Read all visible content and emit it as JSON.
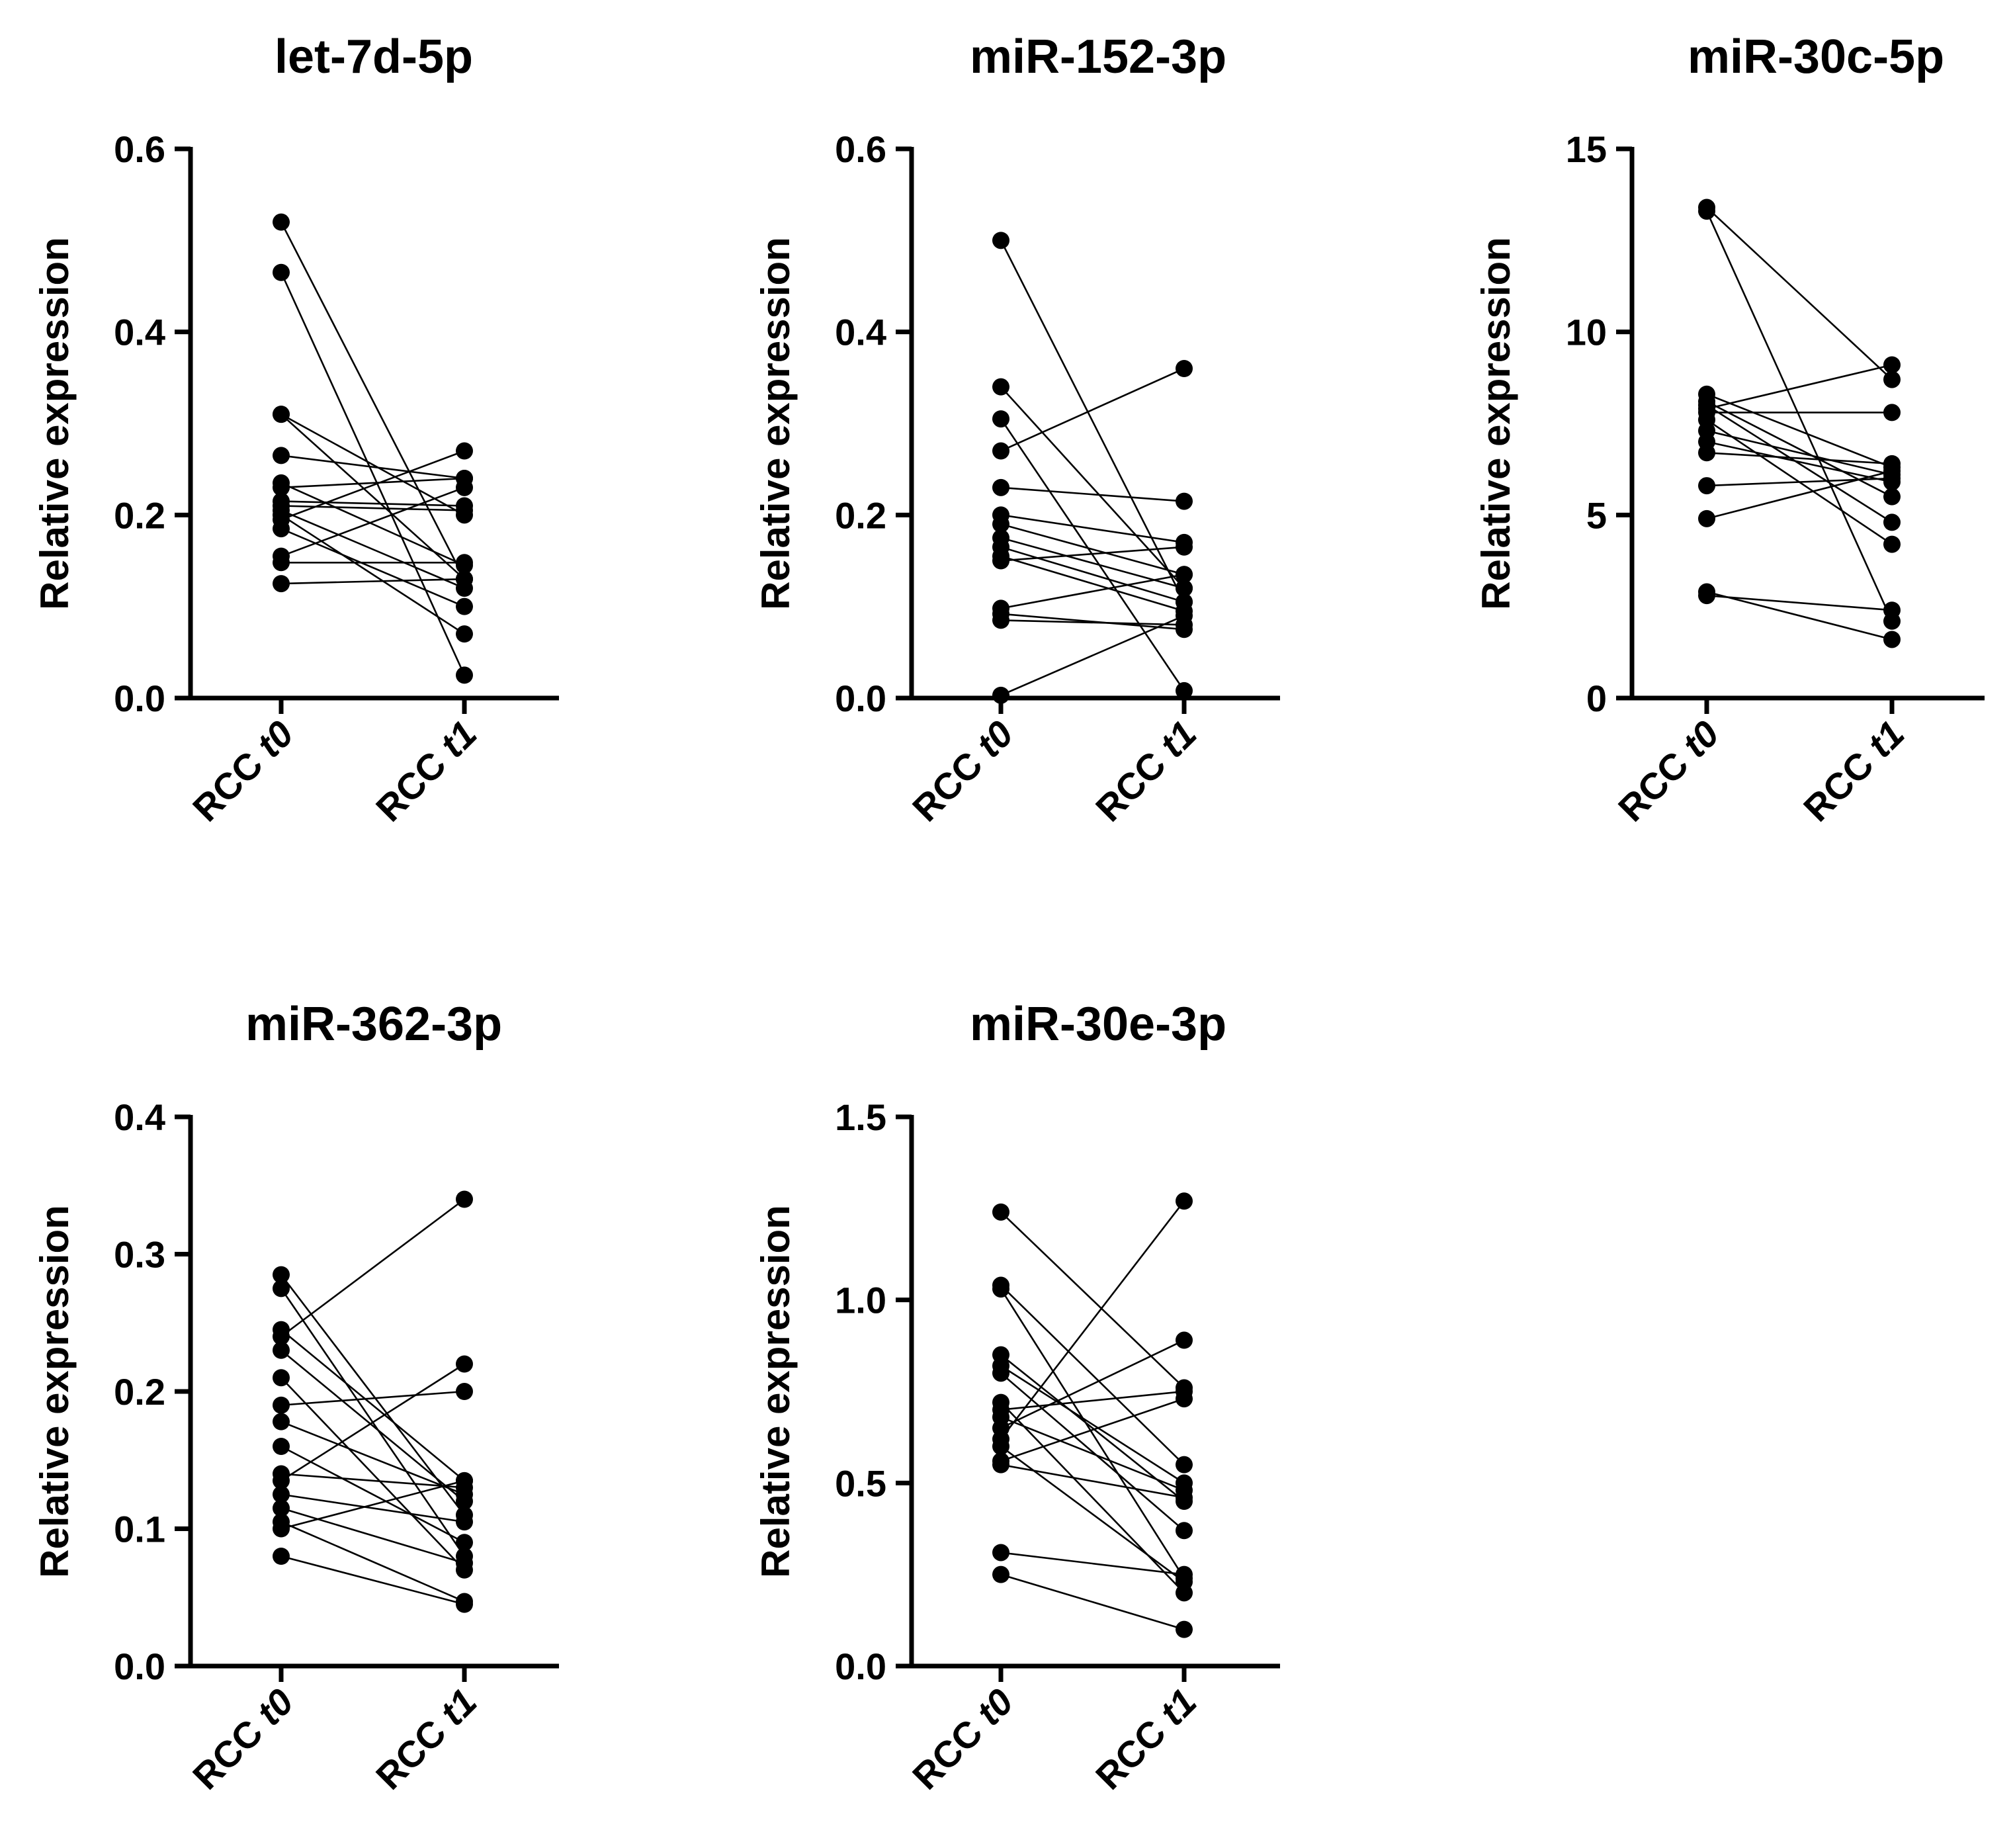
{
  "chart_data": [
    {
      "type": "scatter",
      "title": "let-7d-5p",
      "xlabel": "",
      "ylabel": "Relative expression",
      "categories": [
        "RCC t0",
        "RCC t1"
      ],
      "category_prefix": "RCC ",
      "category_suffixes": [
        "t0",
        "t1"
      ],
      "ylim": [
        0,
        0.6
      ],
      "yticks": [
        0,
        0.2,
        0.4,
        0.6
      ],
      "ytick_labels": [
        "0.0",
        "0.2",
        "0.4",
        "0.6"
      ],
      "pairs": [
        [
          0.52,
          0.13
        ],
        [
          0.465,
          0.025
        ],
        [
          0.31,
          0.13
        ],
        [
          0.31,
          0.2
        ],
        [
          0.265,
          0.24
        ],
        [
          0.235,
          0.145
        ],
        [
          0.23,
          0.24
        ],
        [
          0.215,
          0.21
        ],
        [
          0.21,
          0.205
        ],
        [
          0.205,
          0.12
        ],
        [
          0.2,
          0.07
        ],
        [
          0.195,
          0.27
        ],
        [
          0.185,
          0.1
        ],
        [
          0.155,
          0.23
        ],
        [
          0.148,
          0.148
        ],
        [
          0.125,
          0.13
        ]
      ]
    },
    {
      "type": "scatter",
      "title": "miR-152-3p",
      "xlabel": "",
      "ylabel": "Relative expression",
      "categories": [
        "RCC t0",
        "RCC t1"
      ],
      "category_prefix": "RCC ",
      "category_suffixes": [
        "t0",
        "t1"
      ],
      "ylim": [
        0,
        0.6
      ],
      "yticks": [
        0,
        0.2,
        0.4,
        0.6
      ],
      "ytick_labels": [
        "0.0",
        "0.2",
        "0.4",
        "0.6"
      ],
      "pairs": [
        [
          0.5,
          0.105
        ],
        [
          0.34,
          0.12
        ],
        [
          0.305,
          0.008
        ],
        [
          0.27,
          0.36
        ],
        [
          0.23,
          0.215
        ],
        [
          0.2,
          0.17
        ],
        [
          0.19,
          0.135
        ],
        [
          0.175,
          0.12
        ],
        [
          0.165,
          0.105
        ],
        [
          0.155,
          0.095
        ],
        [
          0.15,
          0.165
        ],
        [
          0.098,
          0.135
        ],
        [
          0.092,
          0.075
        ],
        [
          0.085,
          0.08
        ],
        [
          0.003,
          0.09
        ]
      ]
    },
    {
      "type": "scatter",
      "title": "miR-30c-5p",
      "xlabel": "",
      "ylabel": "Relative expression",
      "categories": [
        "RCC t0",
        "RCC t1"
      ],
      "category_prefix": "RCC ",
      "category_suffixes": [
        "t0",
        "t1"
      ],
      "ylim": [
        0,
        15
      ],
      "yticks": [
        0,
        5,
        10,
        15
      ],
      "ytick_labels": [
        "0",
        "5",
        "10",
        "15"
      ],
      "pairs": [
        [
          13.4,
          8.7
        ],
        [
          13.3,
          2.1
        ],
        [
          8.3,
          6.3
        ],
        [
          8.1,
          5.5
        ],
        [
          8.0,
          4.8
        ],
        [
          7.9,
          9.1
        ],
        [
          7.8,
          7.8
        ],
        [
          7.6,
          4.2
        ],
        [
          7.3,
          6.1
        ],
        [
          7.0,
          5.9
        ],
        [
          6.7,
          6.4
        ],
        [
          5.8,
          6.0
        ],
        [
          4.9,
          6.2
        ],
        [
          2.9,
          1.6
        ],
        [
          2.8,
          2.4
        ]
      ]
    },
    {
      "type": "scatter",
      "title": "miR-362-3p",
      "xlabel": "",
      "ylabel": "Relative expression",
      "categories": [
        "RCC t0",
        "RCC t1"
      ],
      "category_prefix": "RCC ",
      "category_suffixes": [
        "t0",
        "t1"
      ],
      "ylim": [
        0,
        0.4
      ],
      "yticks": [
        0,
        0.1,
        0.2,
        0.3,
        0.4
      ],
      "ytick_labels": [
        "0.0",
        "0.1",
        "0.2",
        "0.3",
        "0.4"
      ],
      "pairs": [
        [
          0.285,
          0.11
        ],
        [
          0.275,
          0.08
        ],
        [
          0.245,
          0.135
        ],
        [
          0.24,
          0.34
        ],
        [
          0.23,
          0.12
        ],
        [
          0.21,
          0.07
        ],
        [
          0.19,
          0.2
        ],
        [
          0.178,
          0.125
        ],
        [
          0.16,
          0.09
        ],
        [
          0.14,
          0.13
        ],
        [
          0.135,
          0.22
        ],
        [
          0.125,
          0.105
        ],
        [
          0.115,
          0.075
        ],
        [
          0.105,
          0.047
        ],
        [
          0.1,
          0.135
        ],
        [
          0.08,
          0.045
        ]
      ]
    },
    {
      "type": "scatter",
      "title": "miR-30e-3p",
      "xlabel": "",
      "ylabel": "Relative expression",
      "categories": [
        "RCC t0",
        "RCC t1"
      ],
      "category_prefix": "RCC ",
      "category_suffixes": [
        "t0",
        "t1"
      ],
      "ylim": [
        0,
        1.5
      ],
      "yticks": [
        0,
        0.5,
        1.0,
        1.5
      ],
      "ytick_labels": [
        "0.0",
        "0.5",
        "1.0",
        "1.5"
      ],
      "pairs": [
        [
          1.24,
          0.76
        ],
        [
          1.04,
          0.55
        ],
        [
          1.03,
          0.24
        ],
        [
          0.85,
          0.45
        ],
        [
          0.82,
          0.5
        ],
        [
          0.8,
          0.37
        ],
        [
          0.72,
          0.2
        ],
        [
          0.7,
          0.75
        ],
        [
          0.68,
          0.48
        ],
        [
          0.65,
          0.89
        ],
        [
          0.62,
          1.27
        ],
        [
          0.6,
          0.23
        ],
        [
          0.56,
          0.73
        ],
        [
          0.55,
          0.46
        ],
        [
          0.31,
          0.25
        ],
        [
          0.25,
          0.1
        ]
      ]
    }
  ]
}
